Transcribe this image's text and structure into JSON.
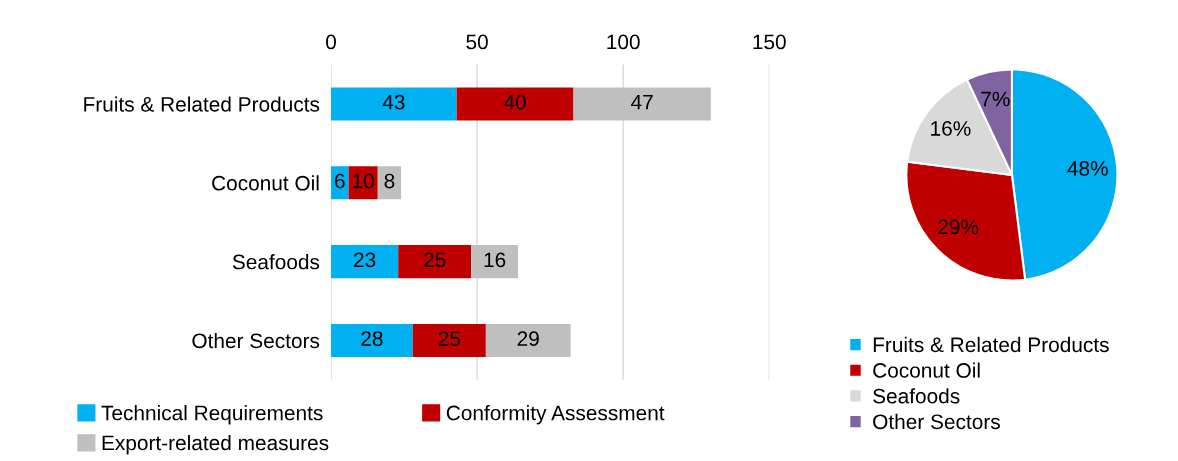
{
  "chart_data": [
    {
      "type": "bar",
      "orientation": "horizontal",
      "stacked": true,
      "categories": [
        "Fruits & Related Products",
        "Coconut Oil",
        "Seafoods",
        "Other Sectors"
      ],
      "series": [
        {
          "name": "Technical Requirements",
          "color": "#00b0f0",
          "values": [
            43,
            6,
            23,
            28
          ]
        },
        {
          "name": "Conformity Assessment",
          "color": "#c00000",
          "values": [
            40,
            10,
            25,
            25
          ]
        },
        {
          "name": "Export-related measures",
          "color": "#bfbfbf",
          "values": [
            47,
            8,
            16,
            29
          ]
        }
      ],
      "xlim": [
        0,
        150
      ],
      "xticks": [
        0,
        50,
        100,
        150
      ],
      "grid": "x",
      "legend": "bottom",
      "data_labels": true
    },
    {
      "type": "pie",
      "categories": [
        "Fruits & Related Products",
        "Coconut Oil",
        "Seafoods",
        "Other Sectors"
      ],
      "values": [
        48,
        29,
        16,
        7
      ],
      "colors": [
        "#00b0f0",
        "#c00000",
        "#d9d9d9",
        "#8064a2"
      ],
      "value_labels": [
        "48%",
        "29%",
        "16%",
        "7%"
      ],
      "legend": "bottom"
    }
  ]
}
